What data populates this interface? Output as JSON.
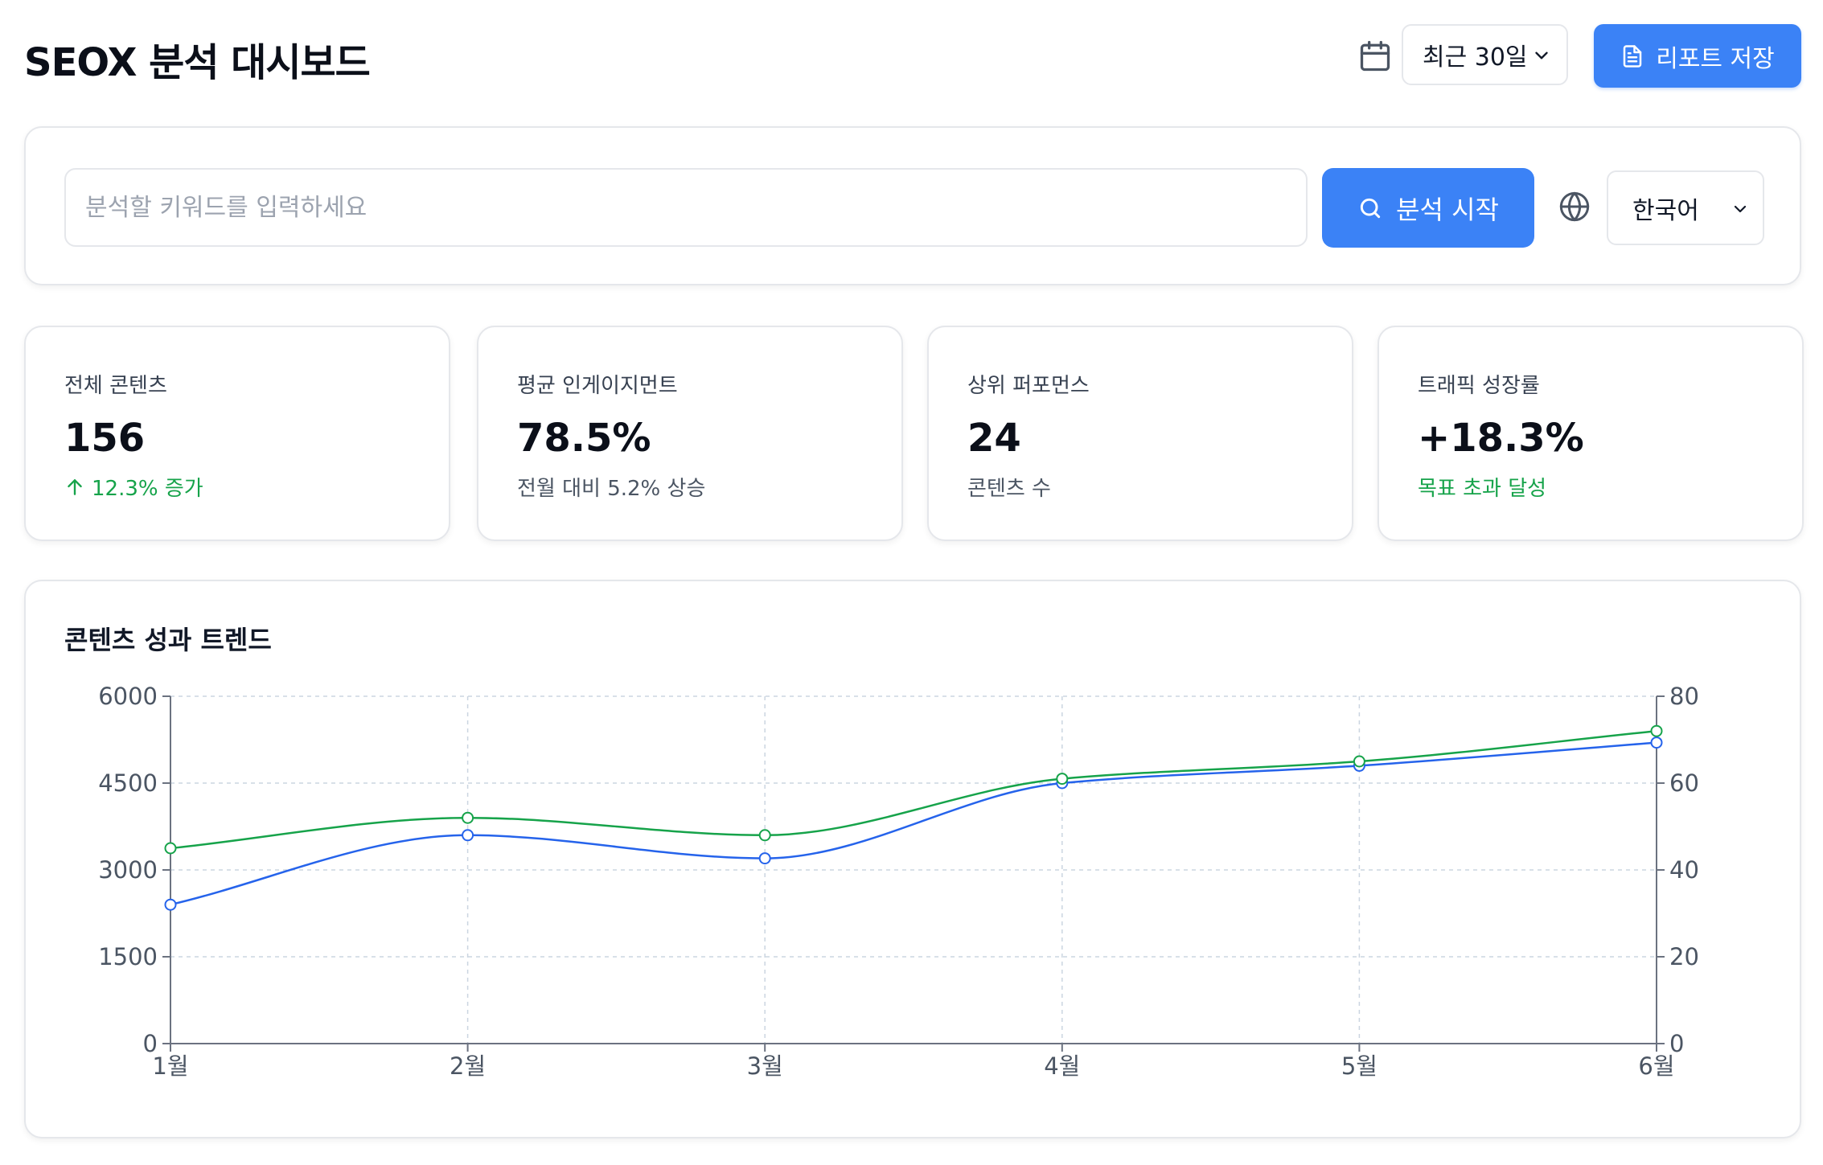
{
  "header": {
    "title": "SEOX 분석 대시보드",
    "period_select": "최근 30일",
    "report_button": "리포트 저장",
    "icons": {
      "calendar": "calendar-icon",
      "report": "file-text-icon",
      "chevron": "chevron-down-icon"
    }
  },
  "search": {
    "placeholder": "분석할 키워드를 입력하세요",
    "value": "",
    "analyze_button": "분석 시작",
    "language_select": "한국어",
    "icons": {
      "search": "search-icon",
      "globe": "globe-icon"
    }
  },
  "stats": [
    {
      "label": "전체 콘텐츠",
      "value": "156",
      "sub": "12.3% 증가",
      "sub_color": "#16a34a",
      "sub_icon": "arrow-up-icon"
    },
    {
      "label": "평균 인게이지먼트",
      "value": "78.5%",
      "sub": "전월 대비 5.2% 상승",
      "sub_color": "#4b5563"
    },
    {
      "label": "상위 퍼포먼스",
      "value": "24",
      "sub": "콘텐츠 수",
      "sub_color": "#4b5563"
    },
    {
      "label": "트래픽 성장률",
      "value": "+18.3%",
      "sub": "목표 초과 달성",
      "sub_color": "#16a34a"
    }
  ],
  "chart": {
    "title": "콘텐츠 성과 트렌드"
  },
  "chart_data": {
    "type": "line",
    "categories": [
      "1월",
      "2월",
      "3월",
      "4월",
      "5월",
      "6월"
    ],
    "series": [
      {
        "axis": "left",
        "color": "#2563eb",
        "values": [
          2400,
          3600,
          3200,
          4500,
          4800,
          5200
        ]
      },
      {
        "axis": "right",
        "color": "#16a34a",
        "values": [
          45,
          52,
          48,
          61,
          65,
          72
        ]
      }
    ],
    "y_left": {
      "range": [
        0,
        6000
      ],
      "ticks": [
        0,
        1500,
        3000,
        4500,
        6000
      ]
    },
    "y_right": {
      "range": [
        0,
        80
      ],
      "ticks": [
        0,
        20,
        40,
        60,
        80
      ]
    },
    "grid": true,
    "smooth": true,
    "legend": "none"
  }
}
